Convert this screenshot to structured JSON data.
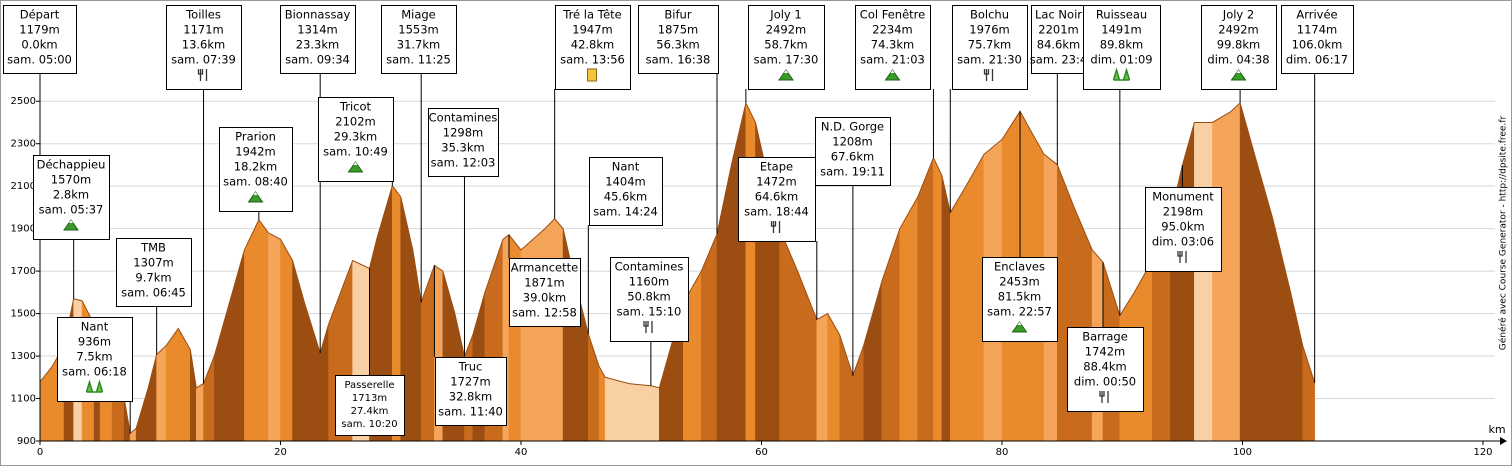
{
  "chart_data": {
    "type": "area",
    "x_label": "km",
    "y_label": "m",
    "side_note": "Généré avec Course Generator - http://dpsite.free.fr",
    "xlim": [
      0,
      120
    ],
    "xticks": [
      0,
      20,
      40,
      60,
      80,
      100,
      120
    ],
    "ylim": [
      900,
      2600
    ],
    "yticks": [
      900,
      1100,
      1300,
      1500,
      1700,
      1900,
      2100,
      2300,
      2500
    ],
    "grid": true,
    "palette": [
      "#f9cfa4",
      "#f5a55a",
      "#e98a2d",
      "#c96b1c",
      "#9c4e12"
    ],
    "x": [
      0,
      1,
      2,
      2.8,
      3.5,
      4.5,
      5,
      6,
      7,
      7.5,
      8,
      9,
      9.7,
      10.5,
      11.5,
      12.5,
      13,
      13.6,
      14.5,
      16,
      17,
      18.2,
      19,
      20,
      21,
      22,
      23.3,
      24,
      25,
      26,
      27.4,
      28,
      29.3,
      30,
      31,
      31.7,
      32.8,
      33.5,
      34.5,
      35.3,
      36,
      37,
      38.5,
      39,
      40,
      41,
      42,
      42.8,
      43.5,
      44.5,
      45.6,
      46.5,
      47,
      49,
      50.8,
      51.5,
      52.5,
      53.5,
      55,
      56.3,
      57.5,
      58.7,
      59.5,
      60.5,
      61.5,
      63,
      64.6,
      65.5,
      66.5,
      67.6,
      68.5,
      70,
      71.5,
      73,
      74.3,
      75,
      75.7,
      77,
      78.5,
      80,
      81.5,
      82.5,
      83.5,
      84.6,
      86,
      87.5,
      88.4,
      89.8,
      91,
      92.5,
      94,
      95,
      96,
      97.5,
      99,
      99.8,
      101,
      102.5,
      104,
      105,
      106
    ],
    "values": [
      1179,
      1250,
      1350,
      1570,
      1560,
      1450,
      1350,
      1250,
      1100,
      936,
      960,
      1150,
      1307,
      1350,
      1430,
      1330,
      1150,
      1171,
      1300,
      1600,
      1800,
      1942,
      1880,
      1850,
      1750,
      1550,
      1314,
      1450,
      1600,
      1750,
      1713,
      1850,
      2102,
      2050,
      1800,
      1553,
      1727,
      1700,
      1500,
      1298,
      1400,
      1600,
      1850,
      1871,
      1800,
      1850,
      1900,
      1947,
      1900,
      1650,
      1404,
      1250,
      1200,
      1170,
      1160,
      1150,
      1350,
      1550,
      1700,
      1875,
      2200,
      2492,
      2400,
      2150,
      1900,
      1700,
      1472,
      1500,
      1400,
      1208,
      1350,
      1650,
      1900,
      2050,
      2234,
      2150,
      1976,
      2100,
      2250,
      2320,
      2453,
      2350,
      2250,
      2201,
      2000,
      1800,
      1742,
      1491,
      1600,
      1750,
      1950,
      2198,
      2400,
      2400,
      2450,
      2492,
      2250,
      1950,
      1600,
      1350,
      1174
    ],
    "waypoints": [
      {
        "name": "Départ",
        "elevation": 1179,
        "elevation_label": "1179m",
        "km": 0.0,
        "km_label": "0.0km",
        "time": "sam. 05:00"
      },
      {
        "name": "Déchappieu",
        "elevation": 1570,
        "elevation_label": "1570m",
        "km": 2.8,
        "km_label": "2.8km",
        "time": "sam. 05:37",
        "icon": "summit"
      },
      {
        "name": "Nant",
        "elevation": 936,
        "elevation_label": "936m",
        "km": 7.5,
        "km_label": "7.5km",
        "time": "sam. 06:18",
        "icon": "water"
      },
      {
        "name": "TMB",
        "elevation": 1307,
        "elevation_label": "1307m",
        "km": 9.7,
        "km_label": "9.7km",
        "time": "sam. 06:45"
      },
      {
        "name": "Toilles",
        "elevation": 1171,
        "elevation_label": "1171m",
        "km": 13.6,
        "km_label": "13.6km",
        "time": "sam. 07:39",
        "icon": "food"
      },
      {
        "name": "Prarion",
        "elevation": 1942,
        "elevation_label": "1942m",
        "km": 18.2,
        "km_label": "18.2km",
        "time": "sam. 08:40",
        "icon": "summit"
      },
      {
        "name": "Bionnassay",
        "elevation": 1314,
        "elevation_label": "1314m",
        "km": 23.3,
        "km_label": "23.3km",
        "time": "sam. 09:34"
      },
      {
        "name": "Tricot",
        "elevation": 2102,
        "elevation_label": "2102m",
        "km": 29.3,
        "km_label": "29.3km",
        "time": "sam. 10:49",
        "icon": "summit"
      },
      {
        "name": "Passerelle",
        "elevation": 1713,
        "elevation_label": "1713m",
        "km": 27.4,
        "km_label": "27.4km",
        "time": "sam. 10:20"
      },
      {
        "name": "Miage",
        "elevation": 1553,
        "elevation_label": "1553m",
        "km": 31.7,
        "km_label": "31.7km",
        "time": "sam. 11:25"
      },
      {
        "name": "Contamines",
        "elevation": 1298,
        "elevation_label": "1298m",
        "km": 35.3,
        "km_label": "35.3km",
        "time": "sam. 12:03"
      },
      {
        "name": "Truc",
        "elevation": 1727,
        "elevation_label": "1727m",
        "km": 32.8,
        "km_label": "32.8km",
        "time": "sam. 11:40"
      },
      {
        "name": "Armancette",
        "elevation": 1871,
        "elevation_label": "1871m",
        "km": 39.0,
        "km_label": "39.0km",
        "time": "sam. 12:58"
      },
      {
        "name": "Tré la Tête",
        "elevation": 1947,
        "elevation_label": "1947m",
        "km": 42.8,
        "km_label": "42.8km",
        "time": "sam. 13:56",
        "icon": "drink"
      },
      {
        "name": "Nant",
        "elevation": 1404,
        "elevation_label": "1404m",
        "km": 45.6,
        "km_label": "45.6km",
        "time": "sam. 14:24"
      },
      {
        "name": "Contamines",
        "elevation": 1160,
        "elevation_label": "1160m",
        "km": 50.8,
        "km_label": "50.8km",
        "time": "sam. 15:10",
        "icon": "food"
      },
      {
        "name": "Bifur",
        "elevation": 1875,
        "elevation_label": "1875m",
        "km": 56.3,
        "km_label": "56.3km",
        "time": "sam. 16:38"
      },
      {
        "name": "Joly 1",
        "elevation": 2492,
        "elevation_label": "2492m",
        "km": 58.7,
        "km_label": "58.7km",
        "time": "sam. 17:30",
        "icon": "summit"
      },
      {
        "name": "Etape",
        "elevation": 1472,
        "elevation_label": "1472m",
        "km": 64.6,
        "km_label": "64.6km",
        "time": "sam. 18:44",
        "icon": "food"
      },
      {
        "name": "N.D. Gorge",
        "elevation": 1208,
        "elevation_label": "1208m",
        "km": 67.6,
        "km_label": "67.6km",
        "time": "sam. 19:11"
      },
      {
        "name": "Col Fenêtre",
        "elevation": 2234,
        "elevation_label": "2234m",
        "km": 74.3,
        "km_label": "74.3km",
        "time": "sam. 21:03",
        "icon": "summit"
      },
      {
        "name": "Bolchu",
        "elevation": 1976,
        "elevation_label": "1976m",
        "km": 75.7,
        "km_label": "75.7km",
        "time": "sam. 21:30",
        "icon": "food"
      },
      {
        "name": "Enclaves",
        "elevation": 2453,
        "elevation_label": "2453m",
        "km": 81.5,
        "km_label": "81.5km",
        "time": "sam. 22:57",
        "icon": "summit"
      },
      {
        "name": "Lac Noir",
        "elevation": 2201,
        "elevation_label": "2201m",
        "km": 84.6,
        "km_label": "84.6km",
        "time": "sam. 23:4"
      },
      {
        "name": "Barrage",
        "elevation": 1742,
        "elevation_label": "1742m",
        "km": 88.4,
        "km_label": "88.4km",
        "time": "dim. 00:50",
        "icon": "food"
      },
      {
        "name": "Ruisseau",
        "elevation": 1491,
        "elevation_label": "1491m",
        "km": 89.8,
        "km_label": "89.8km",
        "time": "dim. 01:09",
        "icon": "water"
      },
      {
        "name": "Monument",
        "elevation": 2198,
        "elevation_label": "2198m",
        "km": 95.0,
        "km_label": "95.0km",
        "time": "dim. 03:06",
        "icon": "food"
      },
      {
        "name": "Joly 2",
        "elevation": 2492,
        "elevation_label": "2492m",
        "km": 99.8,
        "km_label": "99.8km",
        "time": "dim. 04:38",
        "icon": "summit"
      },
      {
        "name": "Arrivée",
        "elevation": 1174,
        "elevation_label": "1174m",
        "km": 106.0,
        "km_label": "106.0km",
        "time": "dim. 06:17"
      }
    ]
  }
}
